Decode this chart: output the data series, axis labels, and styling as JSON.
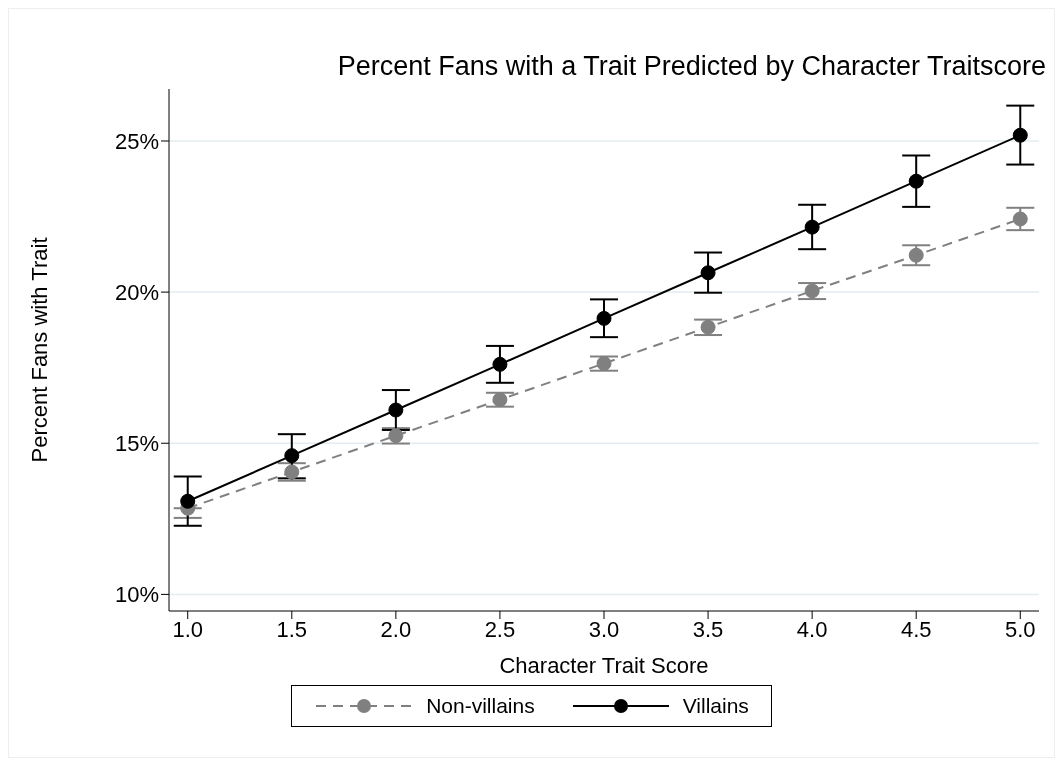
{
  "chart_data": {
    "type": "line",
    "title": "Percent Fans with a Trait Predicted by Character Traitscore",
    "xlabel": "Character Trait Score",
    "ylabel": "Percent Fans with Trait",
    "x": [
      1.0,
      1.5,
      2.0,
      2.5,
      3.0,
      3.5,
      4.0,
      4.5,
      5.0
    ],
    "series": [
      {
        "name": "Non-villains",
        "color": "#808080",
        "line_style": "dashed",
        "values": [
          12.85,
          14.05,
          15.25,
          16.44,
          17.64,
          18.84,
          20.04,
          21.22,
          22.42
        ],
        "errors": [
          [
            12.53,
            12.85
          ],
          [
            13.76,
            14.34
          ],
          [
            14.99,
            15.5
          ],
          [
            16.21,
            16.67
          ],
          [
            17.4,
            17.87
          ],
          [
            18.58,
            19.09
          ],
          [
            19.77,
            20.3
          ],
          [
            20.89,
            21.55
          ],
          [
            22.05,
            22.79
          ]
        ]
      },
      {
        "name": "Villains",
        "color": "#000000",
        "line_style": "solid",
        "values": [
          13.08,
          14.59,
          16.1,
          17.61,
          19.13,
          20.64,
          22.15,
          23.67,
          25.19
        ],
        "errors": [
          [
            12.27,
            13.9
          ],
          [
            13.84,
            15.3
          ],
          [
            15.44,
            16.76
          ],
          [
            17.0,
            18.22
          ],
          [
            18.51,
            19.76
          ],
          [
            19.98,
            21.31
          ],
          [
            21.42,
            22.89
          ],
          [
            22.82,
            24.52
          ],
          [
            24.22,
            26.17
          ]
        ]
      }
    ],
    "xlim": [
      0.91,
      5.09
    ],
    "xticks": [
      {
        "value": 1,
        "label": "1.0"
      },
      {
        "value": 1.5,
        "label": "1.5"
      },
      {
        "value": 2,
        "label": "2.0"
      },
      {
        "value": 2.5,
        "label": "2.5"
      },
      {
        "value": 3,
        "label": "3.0"
      },
      {
        "value": 3.5,
        "label": "3.5"
      },
      {
        "value": 4,
        "label": "4.0"
      },
      {
        "value": 4.5,
        "label": "4.5"
      },
      {
        "value": 5,
        "label": "5.0"
      }
    ],
    "ylim": [
      9.45,
      26.72
    ],
    "yticks": [
      {
        "value": 10,
        "label": "10%"
      },
      {
        "value": 15,
        "label": "15%"
      },
      {
        "value": 20,
        "label": "20%"
      },
      {
        "value": 25,
        "label": "25%"
      }
    ],
    "grid": "y",
    "legend": "bottom",
    "marker": "circle"
  }
}
